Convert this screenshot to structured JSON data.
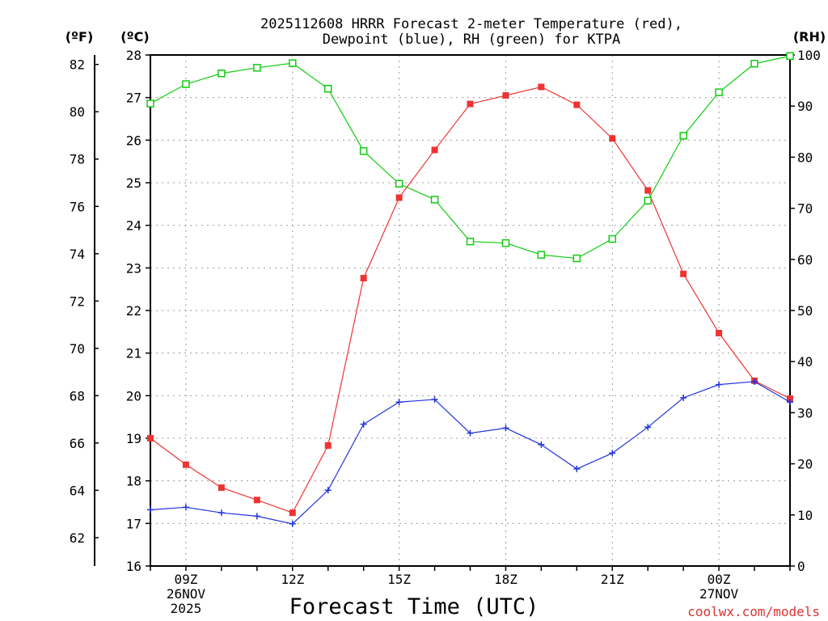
{
  "title_line1": "2025112608 HRRR Forecast 2-meter Temperature (red),",
  "title_line2": "Dewpoint (blue), RH (green) for KTPA",
  "units": {
    "fahrenheit": "(ºF)",
    "celsius": "(ºC)",
    "rh": "(RH)"
  },
  "xlabel": "Forecast Time (UTC)",
  "credit": "coolwx.com/models",
  "colors": {
    "temperature": "#ee3333",
    "dewpoint": "#2233dd",
    "rh": "#11cc11"
  },
  "chart_data": {
    "type": "line",
    "title": "2025112608 HRRR Forecast 2-meter Temperature (red), Dewpoint (blue), RH (green) for KTPA",
    "x": [
      "08Z",
      "09Z",
      "10Z",
      "11Z",
      "12Z",
      "13Z",
      "14Z",
      "15Z",
      "16Z",
      "17Z",
      "18Z",
      "19Z",
      "20Z",
      "21Z",
      "22Z",
      "23Z",
      "00Z",
      "01Z",
      "02Z"
    ],
    "x_tick_labels": [
      {
        "index": 1,
        "lines": [
          "09Z",
          "26NOV",
          "2025"
        ]
      },
      {
        "index": 4,
        "lines": [
          "12Z"
        ]
      },
      {
        "index": 7,
        "lines": [
          "15Z"
        ]
      },
      {
        "index": 10,
        "lines": [
          "18Z"
        ]
      },
      {
        "index": 13,
        "lines": [
          "21Z"
        ]
      },
      {
        "index": 16,
        "lines": [
          "00Z",
          "27NOV"
        ]
      }
    ],
    "left_axis_celsius": {
      "range": [
        16,
        28
      ],
      "ticks": [
        16,
        17,
        18,
        19,
        20,
        21,
        22,
        23,
        24,
        25,
        26,
        27,
        28
      ]
    },
    "left_axis_fahrenheit": {
      "ticks": [
        62,
        64,
        66,
        68,
        70,
        72,
        74,
        76,
        78,
        80,
        82
      ]
    },
    "right_axis_rh": {
      "range": [
        0,
        100
      ],
      "ticks": [
        0,
        10,
        20,
        30,
        40,
        50,
        60,
        70,
        80,
        90,
        100
      ]
    },
    "series": [
      {
        "name": "Temperature (C)",
        "axis": "celsius",
        "marker": "filled-square",
        "values": [
          19.0,
          18.38,
          17.84,
          17.55,
          17.25,
          18.83,
          22.76,
          24.65,
          25.77,
          26.85,
          27.05,
          27.25,
          26.83,
          26.04,
          24.82,
          22.86,
          21.47,
          20.35,
          19.93
        ]
      },
      {
        "name": "Dewpoint (C)",
        "axis": "celsius",
        "marker": "plus",
        "values": [
          17.32,
          17.38,
          17.25,
          17.17,
          16.99,
          17.78,
          19.33,
          19.85,
          19.91,
          19.12,
          19.24,
          18.85,
          18.28,
          18.65,
          19.26,
          19.95,
          20.26,
          20.33,
          19.85
        ]
      },
      {
        "name": "RH (%)",
        "axis": "rh",
        "marker": "open-square",
        "values": [
          90.5,
          94.3,
          96.4,
          97.5,
          98.4,
          93.4,
          81.2,
          74.8,
          71.7,
          63.5,
          63.2,
          60.9,
          60.2,
          64.0,
          71.5,
          84.2,
          92.7,
          98.3,
          99.8
        ]
      }
    ]
  }
}
